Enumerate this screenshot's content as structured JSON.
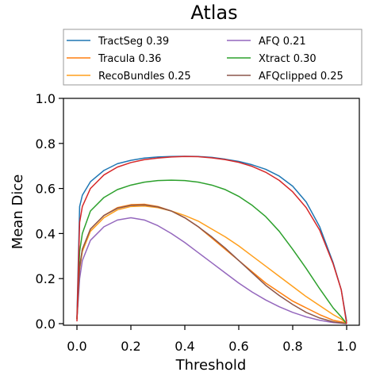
{
  "chart_data": {
    "type": "line",
    "title": "Atlas",
    "xlabel": "Threshold",
    "ylabel": "Mean Dice",
    "xlim": [
      0.0,
      1.0
    ],
    "ylim": [
      0.0,
      1.0
    ],
    "xticks": [
      "0.0",
      "0.2",
      "0.4",
      "0.6",
      "0.8",
      "1.0"
    ],
    "yticks": [
      "0.0",
      "0.2",
      "0.4",
      "0.6",
      "0.8",
      "1.0"
    ],
    "grid": false,
    "legend_position": "top",
    "x": [
      0.0,
      0.01,
      0.02,
      0.05,
      0.1,
      0.15,
      0.2,
      0.25,
      0.3,
      0.35,
      0.4,
      0.45,
      0.5,
      0.55,
      0.6,
      0.65,
      0.7,
      0.75,
      0.8,
      0.85,
      0.9,
      0.95,
      0.98,
      1.0
    ],
    "series": [
      {
        "name": "TractSeg 0.39",
        "color": "#1f77b4",
        "values": [
          0.03,
          0.52,
          0.57,
          0.63,
          0.68,
          0.71,
          0.725,
          0.735,
          0.74,
          0.742,
          0.743,
          0.742,
          0.738,
          0.73,
          0.72,
          0.705,
          0.685,
          0.655,
          0.61,
          0.54,
          0.43,
          0.27,
          0.15,
          0.01
        ]
      },
      {
        "name": "Tracula 0.36",
        "color": "#ff7f0e",
        "values": [
          0.02,
          0.25,
          0.33,
          0.42,
          0.48,
          0.515,
          0.528,
          0.53,
          0.52,
          0.5,
          0.47,
          0.43,
          0.38,
          0.33,
          0.28,
          0.23,
          0.18,
          0.14,
          0.1,
          0.07,
          0.04,
          0.015,
          0.008,
          0.0
        ]
      },
      {
        "name": "RecoBundles 0.25",
        "color": "#ff9f1c",
        "values": [
          0.02,
          0.24,
          0.32,
          0.41,
          0.47,
          0.505,
          0.52,
          0.522,
          0.515,
          0.5,
          0.48,
          0.455,
          0.42,
          0.385,
          0.345,
          0.3,
          0.255,
          0.21,
          0.165,
          0.12,
          0.08,
          0.04,
          0.02,
          0.0
        ]
      },
      {
        "name": "AFQ 0.21",
        "color": "#9467bd",
        "values": [
          0.02,
          0.2,
          0.28,
          0.37,
          0.43,
          0.46,
          0.47,
          0.46,
          0.435,
          0.4,
          0.36,
          0.315,
          0.27,
          0.225,
          0.18,
          0.14,
          0.105,
          0.075,
          0.05,
          0.03,
          0.015,
          0.005,
          0.002,
          0.0
        ]
      },
      {
        "name": "Xtract 0.30",
        "color": "#2ca02c",
        "values": [
          0.02,
          0.32,
          0.4,
          0.5,
          0.56,
          0.595,
          0.615,
          0.628,
          0.635,
          0.637,
          0.635,
          0.628,
          0.615,
          0.595,
          0.565,
          0.525,
          0.475,
          0.41,
          0.33,
          0.245,
          0.155,
          0.07,
          0.03,
          0.0
        ]
      },
      {
        "name": "AFQclipped 0.25",
        "color": "#8c564b",
        "values": [
          0.02,
          0.25,
          0.33,
          0.42,
          0.48,
          0.512,
          0.525,
          0.527,
          0.518,
          0.5,
          0.47,
          0.43,
          0.385,
          0.335,
          0.28,
          0.225,
          0.17,
          0.125,
          0.085,
          0.05,
          0.025,
          0.008,
          0.003,
          0.0
        ]
      },
      {
        "name": "",
        "color": "#d62728",
        "values": [
          0.01,
          0.45,
          0.52,
          0.6,
          0.66,
          0.695,
          0.715,
          0.728,
          0.735,
          0.74,
          0.742,
          0.741,
          0.736,
          0.728,
          0.716,
          0.698,
          0.672,
          0.636,
          0.585,
          0.515,
          0.415,
          0.265,
          0.15,
          0.0
        ]
      }
    ]
  }
}
